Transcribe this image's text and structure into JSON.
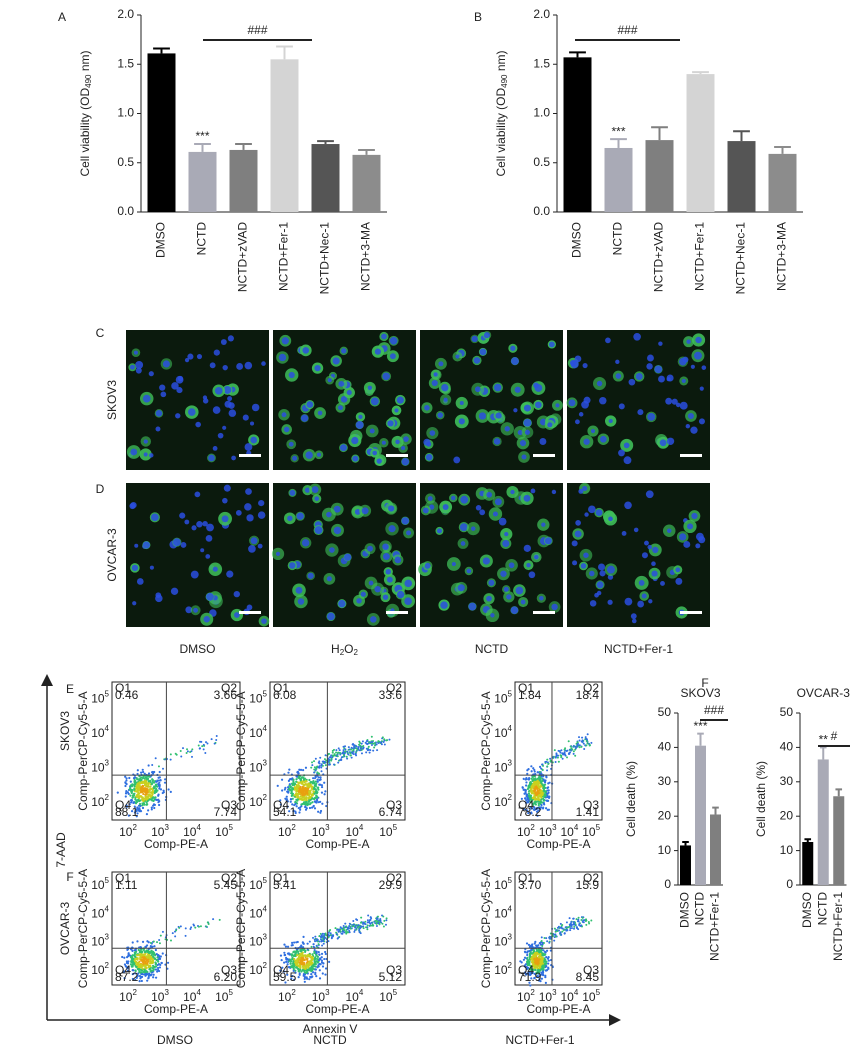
{
  "panel_labels": [
    "A",
    "B",
    "C",
    "D",
    "E",
    "F",
    "F"
  ],
  "chart_data": [
    {
      "type": "bar",
      "categories": [
        "DMSO",
        "NCTD",
        "NCTD+zVAD",
        "NCTD+Fer-1",
        "NCTD+Nec-1",
        "NCTD+3-MA"
      ],
      "values": [
        1.61,
        0.61,
        0.63,
        1.55,
        0.69,
        0.58
      ],
      "errors": [
        0.05,
        0.08,
        0.06,
        0.13,
        0.03,
        0.05
      ],
      "colors": [
        "#000000",
        "#a9aab6",
        "#7f7f7f",
        "#d4d4d4",
        "#555555",
        "#8c8c8c"
      ],
      "ylim": [
        0,
        2
      ],
      "yticks": [
        {
          "value": 0,
          "label": "0.0"
        },
        {
          "value": 0.5,
          "label": "0.5"
        },
        {
          "value": 1,
          "label": "1.0"
        },
        {
          "value": 1.5,
          "label": "1.5"
        },
        {
          "value": 2,
          "label": "2.0"
        }
      ],
      "ylabel_parts": [
        "Cell viability (OD",
        "490",
        " nm)"
      ],
      "annotations": [
        "***",
        "###"
      ]
    },
    {
      "type": "bar",
      "categories": [
        "DMSO",
        "NCTD",
        "NCTD+zVAD",
        "NCTD+Fer-1",
        "NCTD+Nec-1",
        "NCTD+3-MA"
      ],
      "values": [
        1.57,
        0.65,
        0.73,
        1.4,
        0.72,
        0.59
      ],
      "errors": [
        0.05,
        0.09,
        0.13,
        0.02,
        0.1,
        0.07
      ],
      "colors": [
        "#000000",
        "#a9aab6",
        "#7f7f7f",
        "#d4d4d4",
        "#555555",
        "#8c8c8c"
      ],
      "ylim": [
        0,
        2
      ],
      "yticks": [
        {
          "value": 0,
          "label": "0.0"
        },
        {
          "value": 0.5,
          "label": "0.5"
        },
        {
          "value": 1,
          "label": "1.0"
        },
        {
          "value": 1.5,
          "label": "1.5"
        },
        {
          "value": 2,
          "label": "2.0"
        }
      ],
      "ylabel_parts": [
        "Cell viability (OD",
        "490",
        " nm)"
      ],
      "annotations": [
        "***",
        "###"
      ]
    },
    {
      "type": "bar",
      "title": "SKOV3",
      "categories": [
        "DMSO",
        "NCTD",
        "NCTD+Fer-1"
      ],
      "values": [
        11.5,
        40.5,
        20.5
      ],
      "errors": [
        1,
        3.5,
        2
      ],
      "colors": [
        "#000000",
        "#a9aab6",
        "#7f7f7f"
      ],
      "ylim": [
        0,
        50
      ],
      "yticks": [
        0,
        10,
        20,
        30,
        40,
        50
      ],
      "ylabel": "Cell death (%)",
      "annotations": [
        "***",
        "###"
      ]
    },
    {
      "type": "bar",
      "title": "OVCAR-3",
      "categories": [
        "DMSO",
        "NCTD",
        "NCTD+Fer-1"
      ],
      "values": [
        12.5,
        36.5,
        25.8
      ],
      "errors": [
        0.8,
        3.5,
        2
      ],
      "colors": [
        "#000000",
        "#a9aab6",
        "#7f7f7f"
      ],
      "ylim": [
        0,
        50
      ],
      "yticks": [
        0,
        10,
        20,
        30,
        40,
        50
      ],
      "ylabel": "Cell death (%)",
      "annotations": [
        "**",
        "#"
      ]
    }
  ],
  "microscopy": {
    "rows": [
      "SKOV3",
      "OVCAR-3"
    ],
    "columns": [
      [
        "DMSO"
      ],
      [
        "H",
        "2",
        "O",
        "2"
      ],
      [
        "NCTD"
      ],
      [
        "NCTD+Fer-1"
      ]
    ]
  },
  "flow": {
    "y_axis": "7-AAD",
    "x_axis": "Annexin V",
    "rows": [
      "SKOV3",
      "OVCAR-3"
    ],
    "columns": [
      "DMSO",
      "NCTD",
      "NCTD+Fer-1"
    ],
    "plot_xlabel": "Comp-PE-A",
    "plot_ylabel": "Comp-PerCP-Cy5-5-A",
    "tick_base": "10",
    "tick_exponents": [
      "2",
      "3",
      "4",
      "5"
    ],
    "quadrant_names": [
      "Q1",
      "Q2",
      "Q3",
      "Q4"
    ],
    "plots": [
      [
        [
          "0.46",
          "3.66",
          "7.74",
          "88.1"
        ],
        [
          "6.08",
          "33.6",
          "6.74",
          "54.1"
        ],
        [
          "1.84",
          "18.4",
          "1.41",
          "78.2"
        ]
      ],
      [
        [
          "1.11",
          "5.45",
          "6.20",
          "87.2"
        ],
        [
          "5.41",
          "29.9",
          "5.12",
          "59.5"
        ],
        [
          "3.70",
          "15.9",
          "8.45",
          "71.9"
        ]
      ]
    ]
  }
}
